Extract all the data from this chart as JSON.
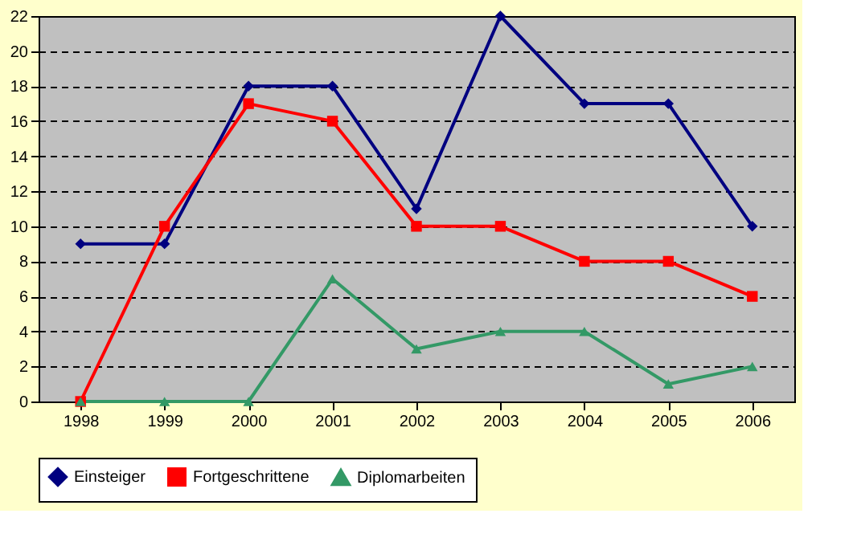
{
  "chart_data": {
    "type": "line",
    "categories": [
      "1998",
      "1999",
      "2000",
      "2001",
      "2002",
      "2003",
      "2004",
      "2005",
      "2006"
    ],
    "series": [
      {
        "name": "Einsteiger",
        "color": "#000080",
        "marker": "diamond",
        "values": [
          9,
          9,
          18,
          18,
          11,
          22,
          17,
          17,
          10
        ]
      },
      {
        "name": "Fortgeschrittene",
        "color": "#ff0000",
        "marker": "square",
        "values": [
          0,
          10,
          17,
          16,
          10,
          10,
          8,
          8,
          6
        ]
      },
      {
        "name": "Diplomarbeiten",
        "color": "#339966",
        "marker": "triangle",
        "values": [
          0,
          0,
          0,
          7,
          3,
          4,
          4,
          1,
          2
        ]
      }
    ],
    "ylim": [
      0,
      22
    ],
    "yticks": [
      0,
      2,
      4,
      6,
      8,
      10,
      12,
      14,
      16,
      18,
      20,
      22
    ],
    "grid": "y",
    "legend": "bottom",
    "line_style": "solid"
  }
}
